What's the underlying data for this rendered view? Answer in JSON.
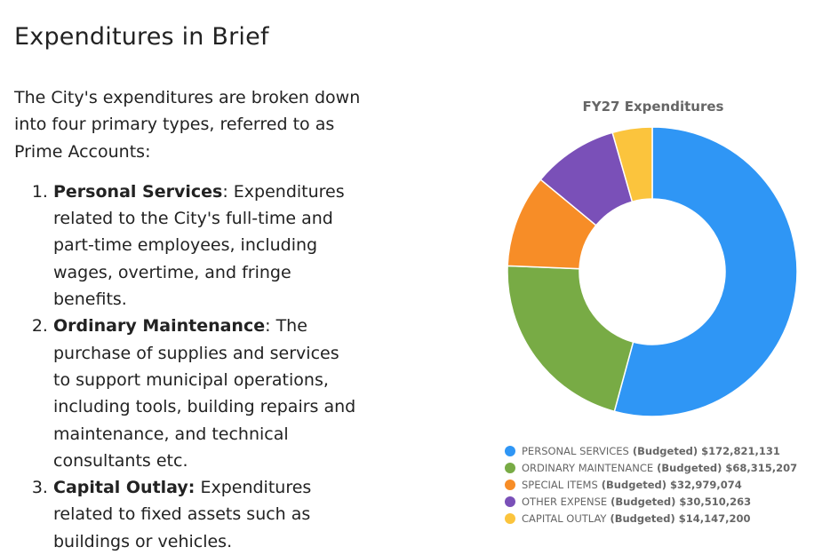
{
  "page": {
    "title": "Expenditures in Brief",
    "intro": "The City's expenditures are broken down into four primary types, referred to as Prime Accounts:",
    "items": [
      {
        "term": "Personal Services",
        "sep": ": ",
        "desc": "Expenditures related to the City's full-time and part-time employees, including wages, overtime, and fringe benefits."
      },
      {
        "term": "Ordinary Maintenance",
        "sep": ": ",
        "desc": "The purchase of supplies and services to support municipal operations, including tools, building repairs and maintenance, and technical consultants etc."
      },
      {
        "term": "Capital Outlay:",
        "sep": " ",
        "desc": "Expenditures related to fixed assets such as buildings or vehicles."
      }
    ]
  },
  "chart_data": {
    "type": "pie",
    "donut": true,
    "title": "FY27 Expenditures",
    "categories": [
      "PERSONAL SERVICES",
      "ORDINARY MAINTENANCE",
      "SPECIAL ITEMS",
      "OTHER EXPENSE",
      "CAPITAL OUTLAY"
    ],
    "values": [
      172821131,
      68315207,
      32979074,
      30510263,
      14147200
    ],
    "value_labels": [
      "$172,821,131",
      "$68,315,207",
      "$32,979,074",
      "$30,510,263",
      "$14,147,200"
    ],
    "qualifier": "(Budgeted)",
    "colors": [
      "#2f96f5",
      "#78ab45",
      "#f78d27",
      "#7a50b8",
      "#fbc43d"
    ],
    "legend_position": "bottom"
  }
}
